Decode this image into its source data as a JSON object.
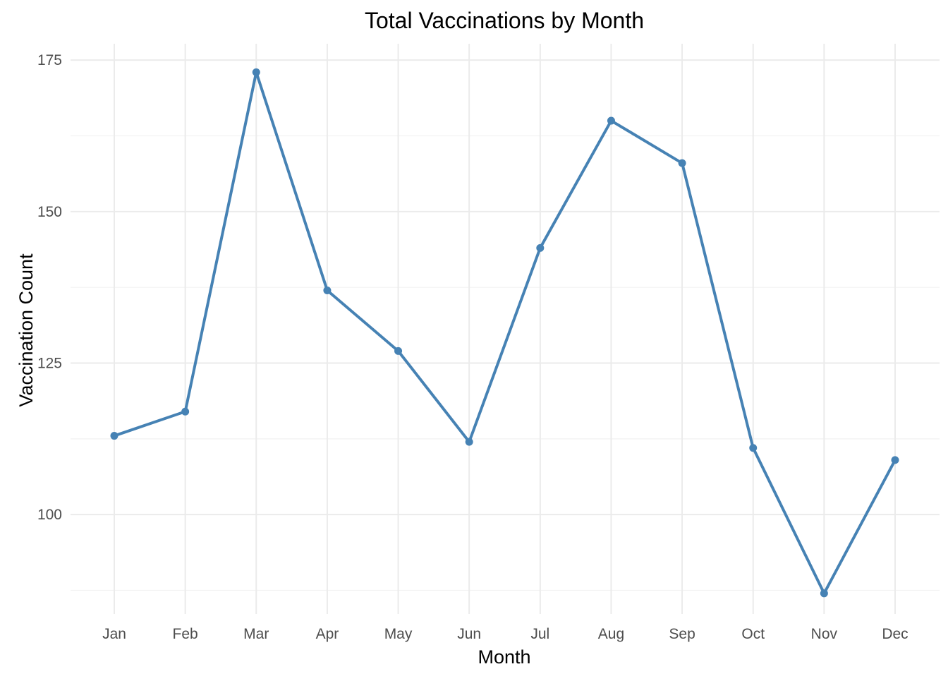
{
  "chart_data": {
    "type": "line",
    "title": "Total Vaccinations by Month",
    "xlabel": "Month",
    "ylabel": "Vaccination Count",
    "categories": [
      "Jan",
      "Feb",
      "Mar",
      "Apr",
      "May",
      "Jun",
      "Jul",
      "Aug",
      "Sep",
      "Oct",
      "Nov",
      "Dec"
    ],
    "series": [
      {
        "values": [
          113,
          117,
          173,
          137,
          127,
          112,
          144,
          165,
          158,
          111,
          87,
          109
        ],
        "color": "#4682b4"
      }
    ],
    "ylim": [
      83.6,
      177.7
    ],
    "yticks": [
      100,
      125,
      150,
      175
    ],
    "yticks_minor": [
      87.5,
      112.5,
      137.5,
      162.5
    ],
    "grid": true,
    "legend": "none"
  }
}
